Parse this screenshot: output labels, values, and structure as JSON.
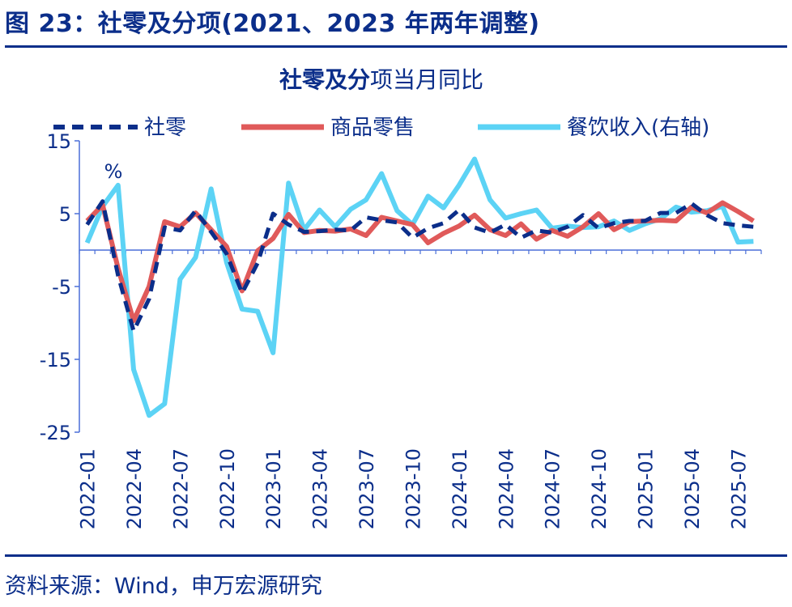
{
  "figure_title": "图 23：社零及分项(2021、2023 年两年调整)",
  "source_note": "资料来源：Wind，申万宏源研究",
  "colors": {
    "brand": "#0B2E8A",
    "retail": "#0B2E8A",
    "goods": "#E05A5A",
    "catering": "#5CD3F5",
    "axis": "#4A6FD8"
  },
  "chart_data": {
    "type": "line",
    "title_bold": "社零及分",
    "title_rest": "项当月同比",
    "unit_label": "%",
    "ylim": [
      -25,
      15
    ],
    "yticks": [
      15,
      5,
      -5,
      -15,
      -25
    ],
    "xtick_labels": [
      "2022-01",
      "2022-04",
      "2022-07",
      "2022-10",
      "2023-01",
      "2023-04",
      "2023-07",
      "2023-10",
      "2024-01",
      "2024-04",
      "2024-07",
      "2024-10",
      "2025-01",
      "2025-04",
      "2025-07"
    ],
    "categories": [
      "2022-01",
      "2022-02",
      "2022-03",
      "2022-04",
      "2022-05",
      "2022-06",
      "2022-07",
      "2022-08",
      "2022-09",
      "2022-10",
      "2022-11",
      "2022-12",
      "2023-01",
      "2023-02",
      "2023-03",
      "2023-04",
      "2023-05",
      "2023-06",
      "2023-07",
      "2023-08",
      "2023-09",
      "2023-10",
      "2023-11",
      "2023-12",
      "2024-01",
      "2024-02",
      "2024-03",
      "2024-04",
      "2024-05",
      "2024-06",
      "2024-07",
      "2024-08",
      "2024-09",
      "2024-10",
      "2024-11",
      "2024-12",
      "2025-01",
      "2025-02",
      "2025-03",
      "2025-04",
      "2025-05",
      "2025-06",
      "2025-07",
      "2025-08"
    ],
    "series": [
      {
        "name": "社零",
        "style": "dashed",
        "colorKey": "retail",
        "values": [
          3.5,
          6.7,
          -3.5,
          -11.1,
          -6.7,
          3.1,
          2.7,
          5.4,
          2.5,
          -0.5,
          -5.9,
          -1.8,
          5.0,
          3.5,
          2.5,
          2.6,
          2.8,
          2.7,
          4.5,
          4.1,
          3.8,
          1.7,
          3.0,
          3.7,
          5.5,
          3.1,
          2.4,
          3.5,
          1.7,
          2.7,
          2.4,
          3.2,
          4.8,
          3.0,
          3.7,
          4.0,
          4.0,
          5.1,
          5.1,
          6.4,
          4.8,
          3.7,
          3.4,
          3.2
        ]
      },
      {
        "name": "商品零售",
        "style": "solid",
        "colorKey": "goods",
        "values": [
          4.0,
          6.2,
          -2.5,
          -9.7,
          -5.0,
          3.9,
          3.2,
          5.1,
          2.8,
          0.5,
          -5.6,
          -0.1,
          1.6,
          4.9,
          2.4,
          2.7,
          2.6,
          2.9,
          2.0,
          4.5,
          4.0,
          3.5,
          1.0,
          2.3,
          3.3,
          4.8,
          2.8,
          2.0,
          3.6,
          1.5,
          2.7,
          1.9,
          3.2,
          5.0,
          2.8,
          3.9,
          4.0,
          4.1,
          4.0,
          5.9,
          5.1,
          6.5,
          5.3,
          4.0
        ]
      },
      {
        "name": "餐饮收入(右轴)",
        "style": "solid",
        "colorKey": "catering",
        "values": [
          1.0,
          6.0,
          8.9,
          -16.4,
          -22.7,
          -21.1,
          -4.0,
          -1.0,
          8.4,
          -1.7,
          -8.1,
          -8.4,
          -14.1,
          9.2,
          2.8,
          5.5,
          3.2,
          5.6,
          6.9,
          10.5,
          5.4,
          3.5,
          7.4,
          5.8,
          8.9,
          12.5,
          6.9,
          4.4,
          5.0,
          5.5,
          3.0,
          3.3,
          3.1,
          3.2,
          4.0,
          2.7,
          3.6,
          4.3,
          5.9,
          5.2,
          5.4,
          6.0,
          1.1,
          1.2
        ]
      }
    ]
  }
}
